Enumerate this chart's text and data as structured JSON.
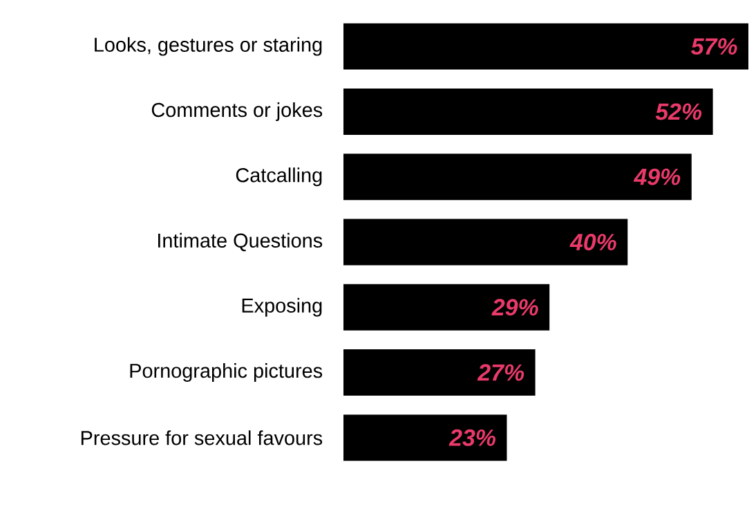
{
  "chart_data": {
    "type": "bar",
    "orientation": "horizontal",
    "categories": [
      "Looks, gestures or staring",
      "Comments or jokes",
      "Catcalling",
      "Intimate Questions",
      "Exposing",
      "Pornographic pictures",
      "Pressure for sexual favours"
    ],
    "values": [
      57,
      52,
      49,
      40,
      29,
      27,
      23
    ],
    "value_labels": [
      "57%",
      "52%",
      "49%",
      "40%",
      "29%",
      "27%",
      "23%"
    ],
    "color": "#000000"
  }
}
